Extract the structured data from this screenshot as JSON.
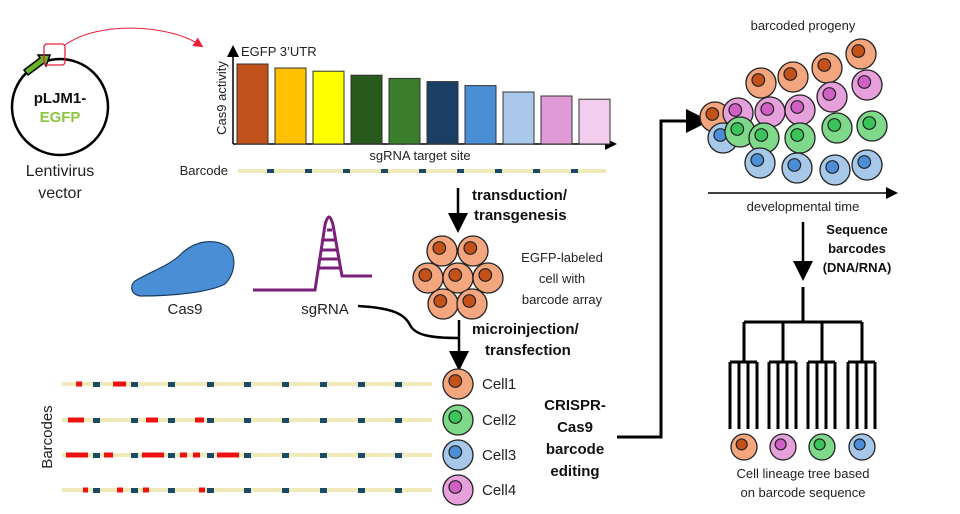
{
  "vector": {
    "name_line1": "pLJM1-",
    "name_line2": "EGFP",
    "caption_line1": "Lentivirus",
    "caption_line2": "vector"
  },
  "barcode_chart": {
    "title": "EGFP 3’UTR",
    "ylabel": "Cas9 activity",
    "xlabel": "sgRNA target site",
    "barcode_label": "Barcode",
    "relative_activity": [
      1.0,
      0.95,
      0.91,
      0.86,
      0.82,
      0.78,
      0.73,
      0.65,
      0.6,
      0.56
    ],
    "bar_colors": [
      "#c1521b",
      "#ffc000",
      "#ffff00",
      "#285a1e",
      "#3a7d2a",
      "#1a3e64",
      "#4a8fd6",
      "#a9c8ea",
      "#e09ad8",
      "#f2cdee"
    ]
  },
  "steps": {
    "transduction_line1": "transduction/",
    "transduction_line2": "transgenesis",
    "cell_label_line1": "EGFP-labeled",
    "cell_label_line2": "cell with",
    "cell_label_line3": "barcode array",
    "microinjection_line1": "microinjection/",
    "microinjection_line2": "transfection",
    "cas9": "Cas9",
    "sgrna": "sgRNA",
    "crispr_line1": "CRISPR-",
    "crispr_line2": "Cas9",
    "crispr_line3": "barcode",
    "crispr_line4": "editing",
    "barcodes_axis": "Barcodes"
  },
  "cells": [
    {
      "label": "Cell1",
      "fill": "#f4a77e",
      "nucleus": "#c4511a"
    },
    {
      "label": "Cell2",
      "fill": "#7fd98a",
      "nucleus": "#3ac45a"
    },
    {
      "label": "Cell3",
      "fill": "#a8c8ea",
      "nucleus": "#4a8fd6"
    },
    {
      "label": "Cell4",
      "fill": "#e6a1dc",
      "nucleus": "#d060c4"
    }
  ],
  "progeny": {
    "title": "barcoded progeny",
    "time_axis": "developmental time"
  },
  "sequencing": {
    "line1": "Sequence",
    "line2": "barcodes",
    "line3": "(DNA/RNA)"
  },
  "tree": {
    "caption_line1": "Cell lineage tree based",
    "caption_line2": "on barcode sequence"
  },
  "colors": {
    "barcode_line": "#efeab8",
    "target_site": "#1a4a66",
    "edit": "#ee1111",
    "egfp_green": "#8cc63f",
    "cas9_blue": "#4a8fd6",
    "sgrna_purple": "#7a1f7a",
    "highlight_red": "#e8203a"
  }
}
